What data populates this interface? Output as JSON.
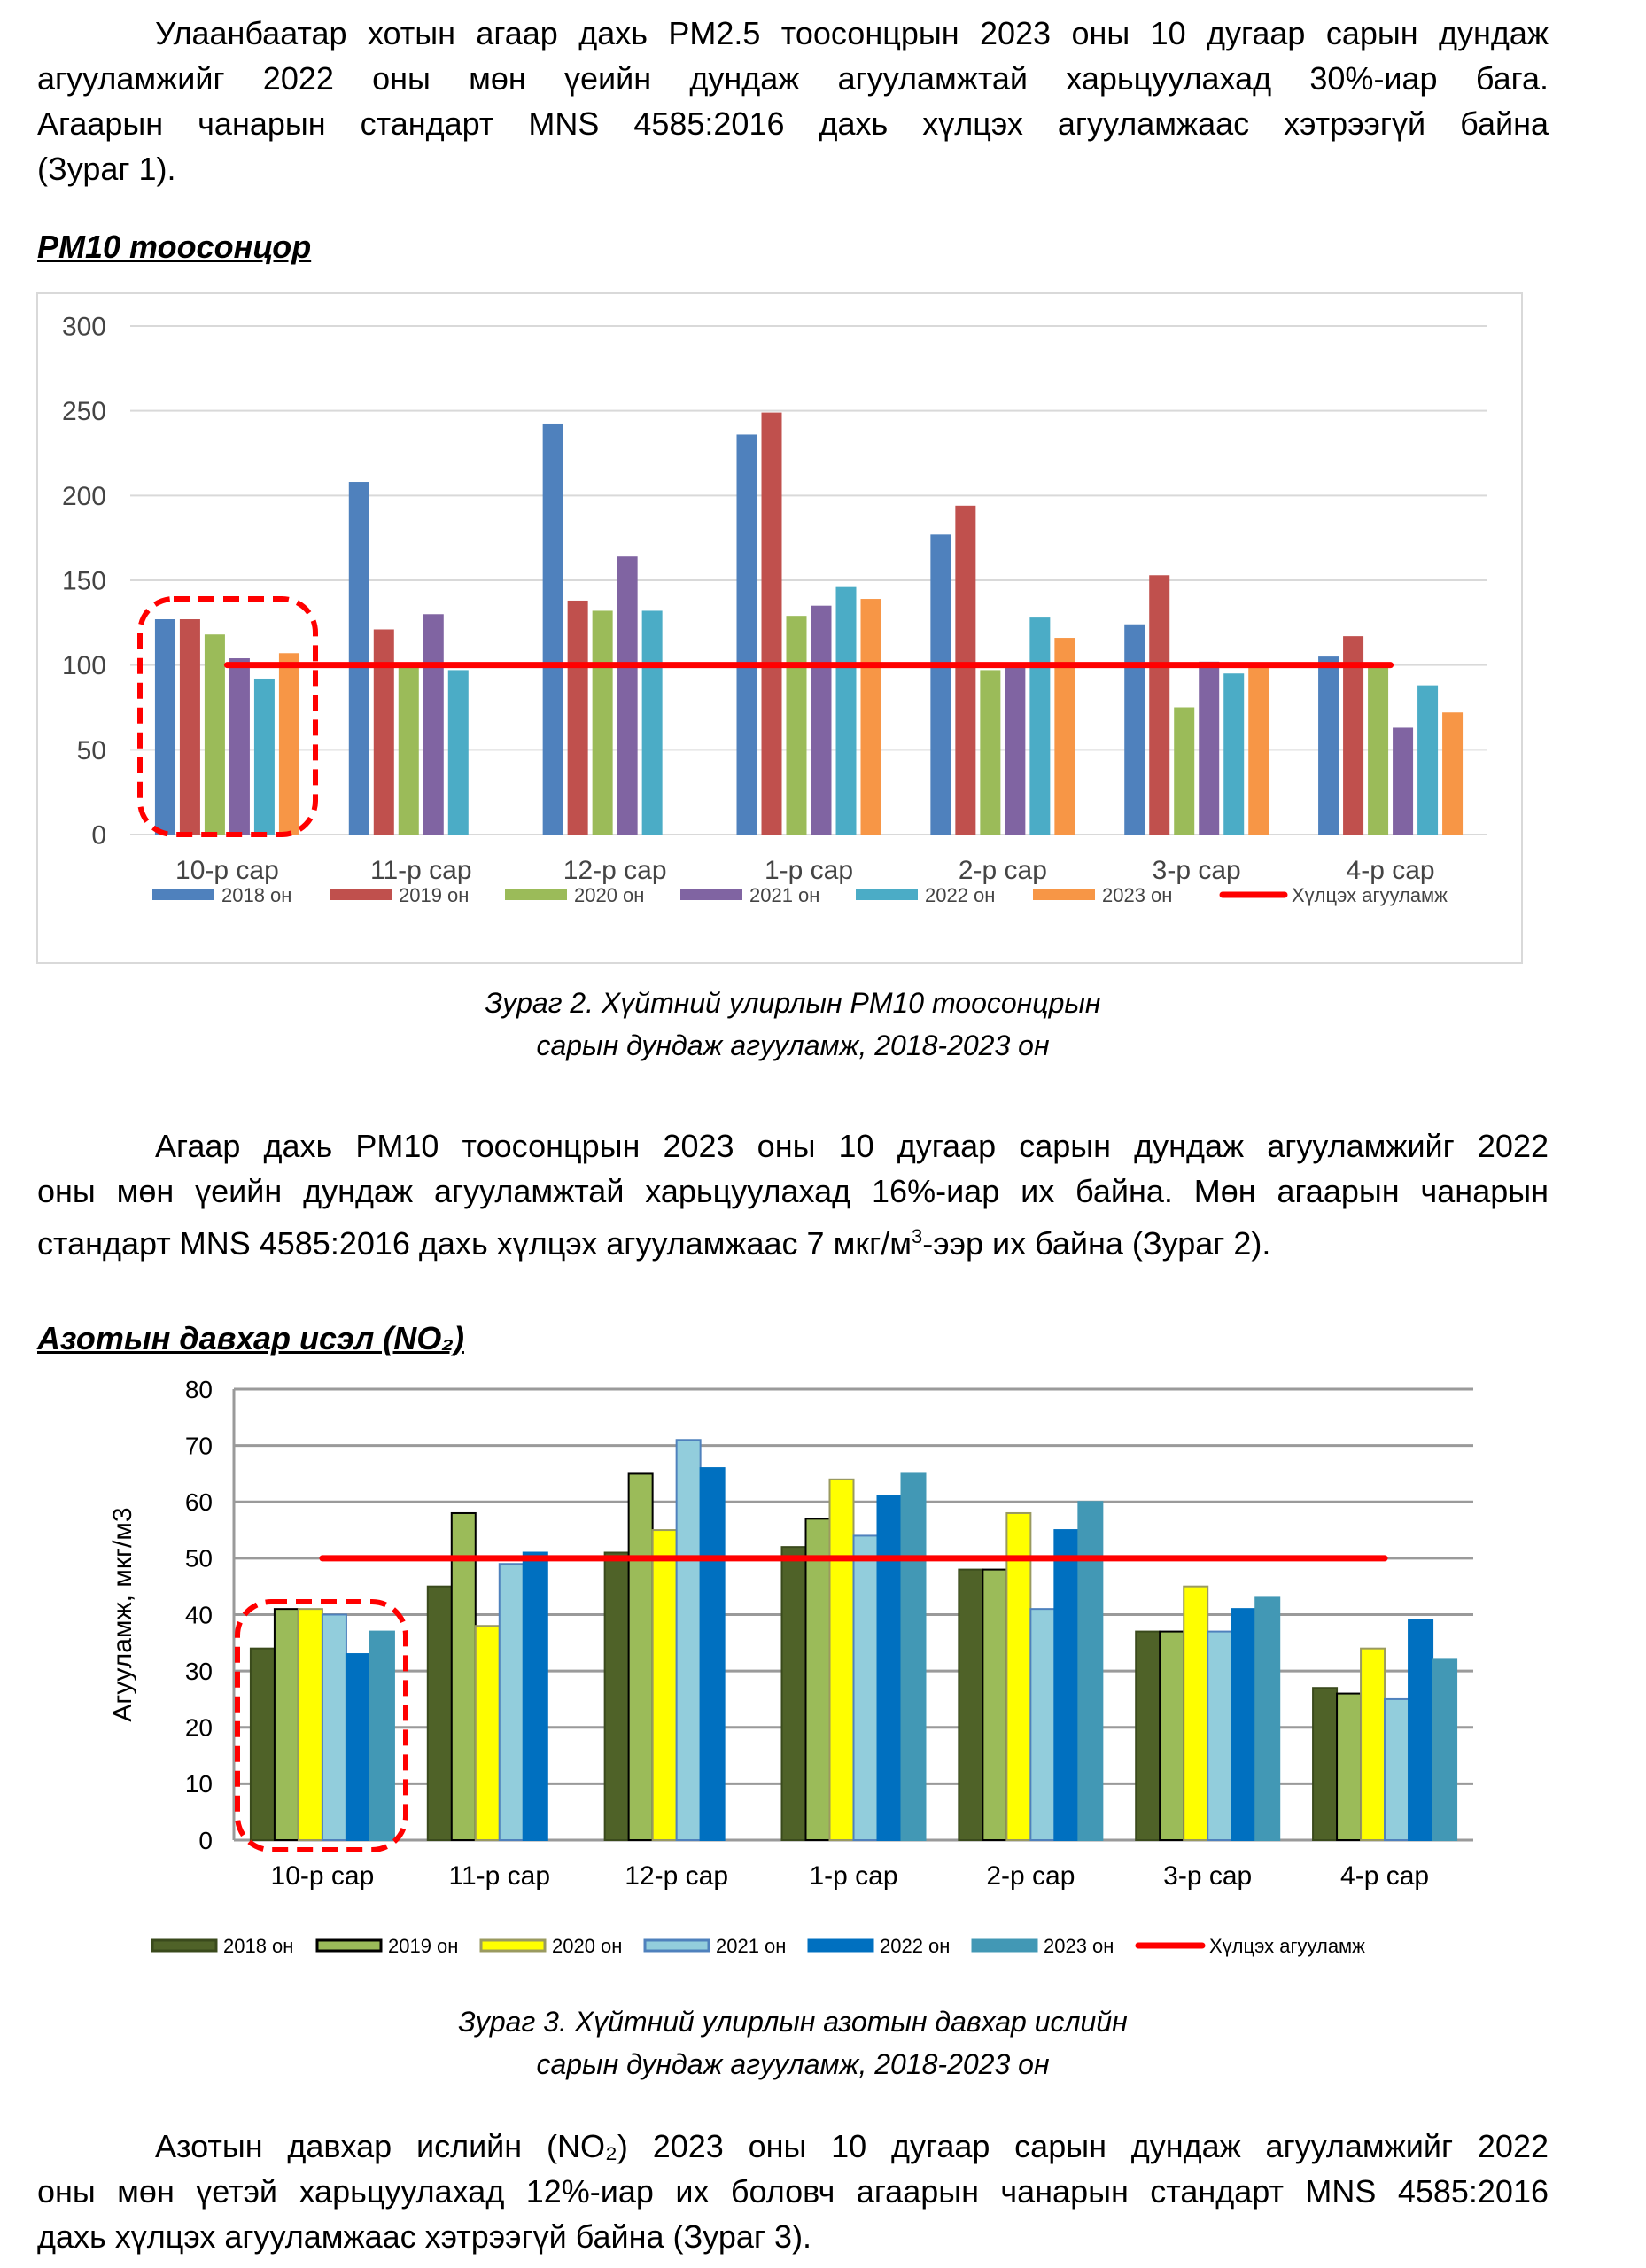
{
  "paragraph1": {
    "lines": [
      "Улаанбаатар хотын агаар дахь PM2.5 тоосонцрын 2023 оны 10 дугаар сарын дундаж",
      "агууламжийг 2022 оны мөн үеийн дундаж агууламжтай харьцуулахад 30%-иар бага.",
      "Агаарын чанарын стандарт MNS 4585:2016 дахь хүлцэх агууламжаас хэтрээгүй байна",
      "(Зураг 1)."
    ]
  },
  "section_pm10": {
    "heading": "PM10 тоосонцор"
  },
  "caption2": {
    "line1": "Зураг 2.  Хүйтний улирлын PM10 тоосонцрын",
    "line2": "сарын дундаж агууламж, 2018-2023 он"
  },
  "paragraph2": {
    "line1": "Агаар дахь PM10 тоосонцрын 2023 оны 10 дугаар сарын дундаж агууламжийг 2022",
    "line2": "оны мөн үеийн дундаж агууламжтай харьцуулахад 16%-иар их байна. Мөн агаарын чанарын",
    "line3_a": "стандарт MNS 4585:2016 дахь хүлцэх агууламжаас 7 мкг/м",
    "line3_sup": "3",
    "line3_b": "-ээр их байна (Зураг 2)."
  },
  "section_no2": {
    "heading": "Азотын давхар исэл (NO₂)"
  },
  "caption3": {
    "line1": "Зураг 3. Хүйтний улирлын азотын давхар ислийн",
    "line2": "сарын дундаж агууламж, 2018-2023 он"
  },
  "paragraph3": {
    "lines": [
      "Азотын давхар ислийн (NO₂) 2023 оны 10 дугаар сарын дундаж агууламжийг 2022",
      "оны мөн үетэй харьцуулахад 12%-иар их боловч агаарын чанарын стандарт MNS 4585:2016",
      "дахь хүлцэх агууламжаас хэтрээгүй байна (Зураг 3)."
    ]
  },
  "chart_data": [
    {
      "type": "bar",
      "title": "PM10 тоосонцор",
      "xlabel": "",
      "ylabel": "",
      "ylim": [
        0,
        300
      ],
      "yticks": [
        0,
        50,
        100,
        150,
        200,
        250,
        300
      ],
      "grid": true,
      "legend_position": "bottom",
      "categories": [
        "10-р сар",
        "11-р сар",
        "12-р сар",
        "1-р сар",
        "2-р сар",
        "3-р сар",
        "4-р сар"
      ],
      "series": [
        {
          "name": "2018 он",
          "color": "#4f81bd",
          "values": [
            127,
            208,
            242,
            236,
            177,
            124,
            105
          ]
        },
        {
          "name": "2019 он",
          "color": "#c0504d",
          "values": [
            127,
            121,
            138,
            249,
            194,
            153,
            117
          ]
        },
        {
          "name": "2020 он",
          "color": "#9bbb59",
          "values": [
            118,
            100,
            132,
            129,
            97,
            75,
            100
          ]
        },
        {
          "name": "2021 он",
          "color": "#8064a2",
          "values": [
            104,
            130,
            164,
            135,
            100,
            102,
            63
          ]
        },
        {
          "name": "2022 он",
          "color": "#4bacc6",
          "values": [
            92,
            97,
            132,
            146,
            128,
            95,
            88
          ]
        },
        {
          "name": "2023 он",
          "color": "#f79646",
          "values": [
            107,
            null,
            null,
            139,
            116,
            100,
            72
          ]
        }
      ],
      "limit_line": {
        "name": "Хүлцэх агууламж",
        "value": 100,
        "color": "#ff0000"
      },
      "highlight_category": "10-р сар"
    },
    {
      "type": "bar",
      "title": "Азотын давхар исэл (NO₂)",
      "xlabel": "",
      "ylabel": "Агууламж, мкг/м3",
      "ylim": [
        0,
        80
      ],
      "yticks": [
        0,
        10,
        20,
        30,
        40,
        50,
        60,
        70,
        80
      ],
      "grid": true,
      "legend_position": "bottom",
      "categories": [
        "10-р сар",
        "11-р сар",
        "12-р сар",
        "1-р сар",
        "2-р сар",
        "3-р сар",
        "4-р сар"
      ],
      "series": [
        {
          "name": "2018 он",
          "color": "#4f6228",
          "stroke": "#3a4a1c",
          "values": [
            34,
            45,
            51,
            52,
            48,
            37,
            27
          ]
        },
        {
          "name": "2019 он",
          "color": "#9bbb59",
          "stroke": "#000000",
          "values": [
            41,
            58,
            65,
            57,
            48,
            37,
            26
          ]
        },
        {
          "name": "2020 он",
          "color": "#ffff00",
          "stroke": "#9a9a60",
          "values": [
            41,
            38,
            55,
            64,
            58,
            45,
            34
          ]
        },
        {
          "name": "2021 он",
          "color": "#92cddc",
          "stroke": "#4f81bd",
          "values": [
            40,
            49,
            71,
            54,
            41,
            37,
            25
          ]
        },
        {
          "name": "2022 он",
          "color": "#0070c0",
          "stroke": "#0070c0",
          "values": [
            33,
            51,
            66,
            61,
            55,
            41,
            39
          ]
        },
        {
          "name": "2023 он",
          "color": "#4298b5",
          "stroke": "#4298b5",
          "values": [
            37,
            null,
            null,
            65,
            60,
            43,
            32
          ]
        }
      ],
      "limit_line": {
        "name": "Хүлцэх агууламж",
        "value": 50,
        "color": "#ff0000"
      },
      "highlight_category": "10-р сар"
    }
  ]
}
